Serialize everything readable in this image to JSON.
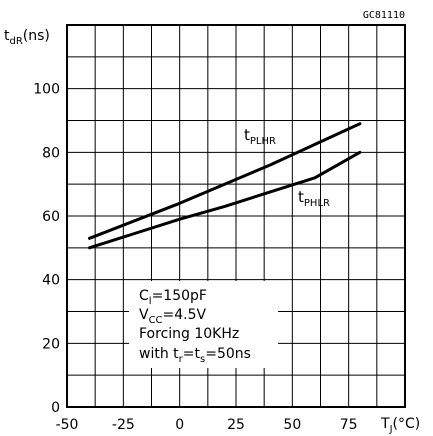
{
  "figure_code": "GC81110",
  "chart_data": {
    "type": "line",
    "xlabel": {
      "main": "T",
      "sub": "J",
      "unit": "(°C)"
    },
    "ylabel": {
      "main": "t",
      "sub": "dR",
      "unit": "(ns)"
    },
    "xlim": [
      -50,
      100
    ],
    "ylim": [
      0,
      120
    ],
    "x_ticks": [
      -50,
      -25,
      0,
      25,
      50,
      75
    ],
    "x_tick_labels": [
      "-50",
      "-25",
      "0",
      "25",
      "50",
      "75"
    ],
    "y_ticks": [
      0,
      20,
      40,
      60,
      80,
      100
    ],
    "y_tick_labels": [
      "0",
      "20",
      "40",
      "60",
      "80",
      "100"
    ],
    "grid": true,
    "series": [
      {
        "name": "tPLHR",
        "label": {
          "main": "t",
          "sub": "PLHR"
        },
        "x": [
          -40,
          0,
          40,
          80
        ],
        "y": [
          53,
          64,
          76,
          89
        ]
      },
      {
        "name": "tPHLR",
        "label": {
          "main": "t",
          "sub": "PHLR"
        },
        "x": [
          -40,
          -20,
          0,
          20,
          40,
          60,
          80
        ],
        "y": [
          50,
          54.5,
          59,
          63,
          67.5,
          72,
          80
        ]
      }
    ],
    "annotation_lines": [
      {
        "main": "C",
        "sub": "l",
        "rest": "=150pF"
      },
      {
        "main": "V",
        "sub": "CC",
        "rest": "=4.5V"
      },
      {
        "main": "Forcing  10KHz",
        "sub": "",
        "rest": ""
      },
      {
        "main": "with  t",
        "sub": "r",
        "rest": "=t",
        "sub2": "s",
        "rest2": "=50ns"
      }
    ]
  }
}
